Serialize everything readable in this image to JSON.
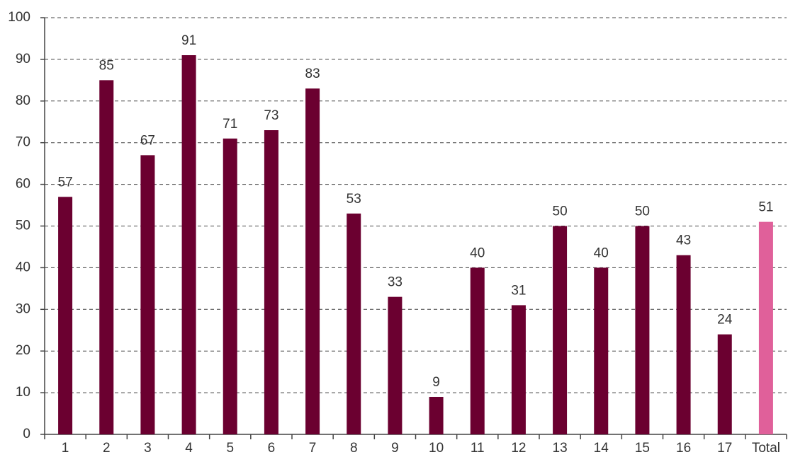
{
  "chart_data": {
    "type": "bar",
    "categories": [
      "1",
      "2",
      "3",
      "4",
      "5",
      "6",
      "7",
      "8",
      "9",
      "10",
      "11",
      "12",
      "13",
      "14",
      "15",
      "16",
      "17",
      "Total"
    ],
    "values": [
      57,
      85,
      67,
      91,
      71,
      73,
      83,
      53,
      33,
      9,
      40,
      31,
      50,
      40,
      50,
      43,
      24,
      51
    ],
    "colors": [
      "#6b0030",
      "#6b0030",
      "#6b0030",
      "#6b0030",
      "#6b0030",
      "#6b0030",
      "#6b0030",
      "#6b0030",
      "#6b0030",
      "#6b0030",
      "#6b0030",
      "#6b0030",
      "#6b0030",
      "#6b0030",
      "#6b0030",
      "#6b0030",
      "#6b0030",
      "#e0609a"
    ],
    "ylim": [
      0,
      100
    ],
    "yticks": [
      0,
      10,
      20,
      30,
      40,
      50,
      60,
      70,
      80,
      90,
      100
    ],
    "grid": true
  }
}
